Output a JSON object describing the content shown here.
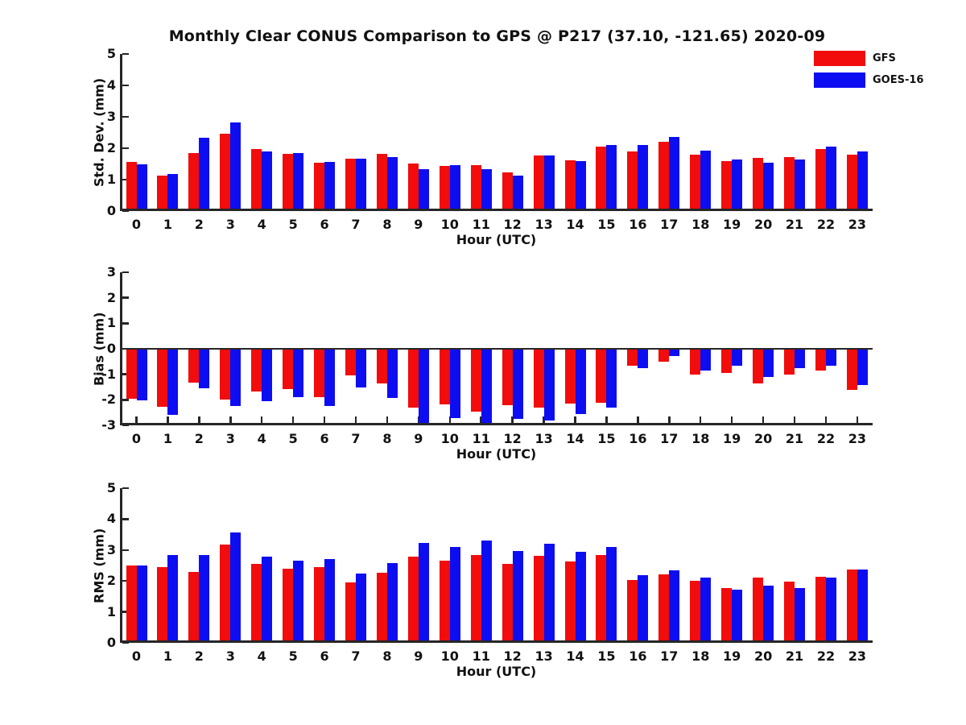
{
  "title": "Monthly Clear CONUS Comparison to GPS @ P217 (37.10, -121.65) 2020-09",
  "xlabel": "Hour (UTC)",
  "colors": {
    "gfs": "#f20c0c",
    "goes": "#0d0df2",
    "axis": "#262626"
  },
  "legend": [
    {
      "label": "GFS",
      "color_key": "gfs"
    },
    {
      "label": "GOES-16",
      "color_key": "goes"
    }
  ],
  "hours": [
    "0",
    "1",
    "2",
    "3",
    "4",
    "5",
    "6",
    "7",
    "8",
    "9",
    "10",
    "11",
    "12",
    "13",
    "14",
    "15",
    "16",
    "17",
    "18",
    "19",
    "20",
    "21",
    "22",
    "23"
  ],
  "chart_data": [
    {
      "type": "bar",
      "ylabel": "Std. Dev. (mm)",
      "xlabel": "Hour (UTC)",
      "ylim": [
        0,
        5
      ],
      "yticks": [
        0,
        1,
        2,
        3,
        4,
        5
      ],
      "grid": false,
      "legend_position": "upper-right-outside",
      "categories": [
        "0",
        "1",
        "2",
        "3",
        "4",
        "5",
        "6",
        "7",
        "8",
        "9",
        "10",
        "11",
        "12",
        "13",
        "14",
        "15",
        "16",
        "17",
        "18",
        "19",
        "20",
        "21",
        "22",
        "23"
      ],
      "series": [
        {
          "name": "GFS",
          "values": [
            1.57,
            1.12,
            1.84,
            2.47,
            1.97,
            1.83,
            1.55,
            1.67,
            1.82,
            1.52,
            1.44,
            1.46,
            1.24,
            1.76,
            1.61,
            2.05,
            1.91,
            2.2,
            1.8,
            1.58,
            1.68,
            1.73,
            1.97,
            1.79
          ]
        },
        {
          "name": "GOES-16",
          "values": [
            1.48,
            1.18,
            2.33,
            2.82,
            1.9,
            1.85,
            1.57,
            1.67,
            1.72,
            1.33,
            1.47,
            1.33,
            1.14,
            1.76,
            1.59,
            2.1,
            2.1,
            2.36,
            1.92,
            1.65,
            1.55,
            1.64,
            2.05,
            1.9
          ]
        }
      ]
    },
    {
      "type": "bar",
      "ylabel": "Bias (mm)",
      "xlabel": "Hour (UTC)",
      "ylim": [
        -3,
        3
      ],
      "yticks": [
        -3,
        -2,
        -1,
        0,
        1,
        2,
        3
      ],
      "grid": false,
      "zero_line": true,
      "categories": [
        "0",
        "1",
        "2",
        "3",
        "4",
        "5",
        "6",
        "7",
        "8",
        "9",
        "10",
        "11",
        "12",
        "13",
        "14",
        "15",
        "16",
        "17",
        "18",
        "19",
        "20",
        "21",
        "22",
        "23"
      ],
      "series": [
        {
          "name": "GFS",
          "values": [
            -1.97,
            -2.26,
            -1.33,
            -2.0,
            -1.68,
            -1.57,
            -1.9,
            -1.05,
            -1.37,
            -2.3,
            -2.18,
            -2.46,
            -2.21,
            -2.3,
            -2.15,
            -2.1,
            -0.65,
            -0.5,
            -1.0,
            -0.95,
            -1.35,
            -1.02,
            -0.86,
            -1.62
          ]
        },
        {
          "name": "GOES-16",
          "values": [
            -2.03,
            -2.6,
            -1.54,
            -2.24,
            -2.06,
            -1.88,
            -2.25,
            -1.52,
            -1.93,
            -3.0,
            -2.72,
            -3.0,
            -2.76,
            -2.8,
            -2.56,
            -2.3,
            -0.75,
            -0.28,
            -0.86,
            -0.66,
            -1.12,
            -0.75,
            -0.65,
            -1.43
          ]
        }
      ]
    },
    {
      "type": "bar",
      "ylabel": "RMS (mm)",
      "xlabel": "Hour (UTC)",
      "ylim": [
        0,
        5
      ],
      "yticks": [
        0,
        1,
        2,
        3,
        4,
        5
      ],
      "grid": false,
      "categories": [
        "0",
        "1",
        "2",
        "3",
        "4",
        "5",
        "6",
        "7",
        "8",
        "9",
        "10",
        "11",
        "12",
        "13",
        "14",
        "15",
        "16",
        "17",
        "18",
        "19",
        "20",
        "21",
        "22",
        "23"
      ],
      "series": [
        {
          "name": "GFS",
          "values": [
            2.49,
            2.46,
            2.3,
            3.17,
            2.56,
            2.39,
            2.46,
            1.95,
            2.26,
            2.79,
            2.65,
            2.85,
            2.54,
            2.82,
            2.63,
            2.85,
            2.02,
            2.21,
            2.01,
            1.78,
            2.12,
            1.98,
            2.14,
            2.37
          ]
        },
        {
          "name": "GOES-16",
          "values": [
            2.49,
            2.85,
            2.84,
            3.58,
            2.78,
            2.65,
            2.72,
            2.23,
            2.59,
            3.24,
            3.1,
            3.31,
            2.97,
            3.21,
            2.95,
            3.1,
            2.19,
            2.35,
            2.1,
            1.72,
            1.86,
            1.78,
            2.12,
            2.37
          ]
        }
      ]
    }
  ]
}
